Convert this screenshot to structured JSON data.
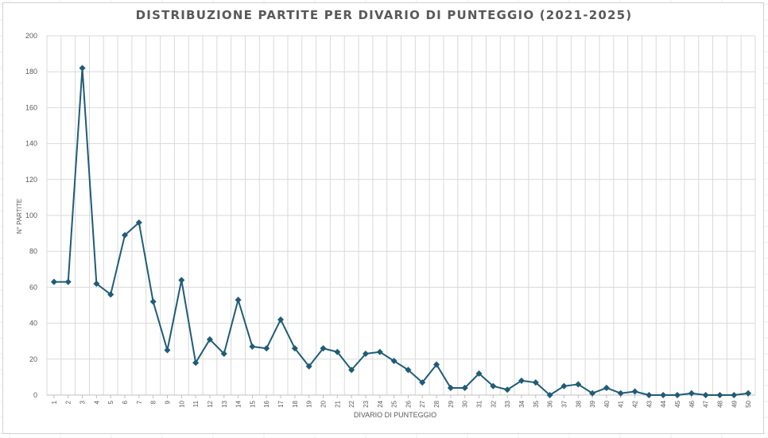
{
  "chart_data": {
    "type": "line",
    "title": "DISTRIBUZIONE PARTITE PER DIVARIO DI PUNTEGGIO (2021-2025)",
    "xlabel": "DIVARIO DI PUNTEGGIO",
    "ylabel": "N° PARTITE",
    "ylim": [
      0,
      200
    ],
    "yticks": [
      0,
      20,
      40,
      60,
      80,
      100,
      120,
      140,
      160,
      180,
      200
    ],
    "grid": true,
    "legend": "none",
    "categories": [
      "1",
      "2",
      "3",
      "4",
      "5",
      "6",
      "7",
      "8",
      "9",
      "10",
      "11",
      "12",
      "13",
      "14",
      "15",
      "16",
      "17",
      "18",
      "19",
      "20",
      "21",
      "22",
      "23",
      "24",
      "25",
      "26",
      "27",
      "28",
      "29",
      "30",
      "31",
      "32",
      "33",
      "34",
      "35",
      "36",
      "37",
      "38",
      "39",
      "40",
      "41",
      "42",
      "43",
      "44",
      "45",
      "46",
      "47",
      "48",
      "49",
      "50"
    ],
    "values": [
      63,
      63,
      182,
      62,
      56,
      89,
      96,
      52,
      25,
      64,
      18,
      31,
      23,
      53,
      27,
      26,
      42,
      26,
      16,
      26,
      24,
      14,
      23,
      24,
      19,
      14,
      7,
      17,
      4,
      4,
      12,
      5,
      3,
      8,
      7,
      0,
      5,
      6,
      1,
      4,
      1,
      2,
      0,
      0,
      0,
      1,
      0,
      0,
      0,
      1
    ],
    "colors": {
      "line": "#1f5c78",
      "grid": "#d9d9d9",
      "text": "#595959"
    }
  }
}
